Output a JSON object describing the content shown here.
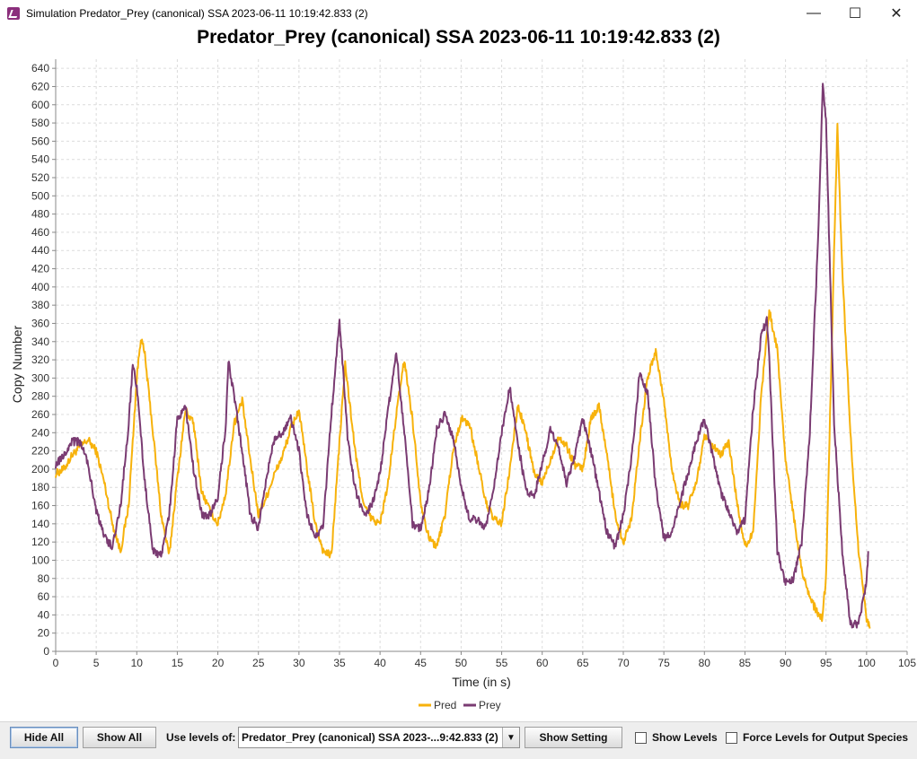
{
  "window": {
    "title": "Simulation Predator_Prey (canonical) SSA 2023-06-11 10:19:42.833 (2)",
    "controls": {
      "minimize": "—",
      "maximize": "☐",
      "close": "✕"
    }
  },
  "chart_data": {
    "type": "line",
    "title": "Predator_Prey (canonical) SSA 2023-06-11 10:19:42.833 (2)",
    "xlabel": "Time (in s)",
    "ylabel": "Copy Number",
    "xlim": [
      0,
      105
    ],
    "ylim": [
      0,
      650
    ],
    "xticks": [
      0,
      5,
      10,
      15,
      20,
      25,
      30,
      35,
      40,
      45,
      50,
      55,
      60,
      65,
      70,
      75,
      80,
      85,
      90,
      95,
      100,
      105
    ],
    "yticks": [
      0,
      20,
      40,
      60,
      80,
      100,
      120,
      140,
      160,
      180,
      200,
      220,
      240,
      260,
      280,
      300,
      320,
      340,
      360,
      380,
      400,
      420,
      440,
      460,
      480,
      500,
      520,
      540,
      560,
      580,
      600,
      620,
      640
    ],
    "grid": true,
    "legend": "bottom-center",
    "series": [
      {
        "name": "Pred",
        "color": "#f7b20b",
        "points": [
          [
            0,
            195
          ],
          [
            1,
            200
          ],
          [
            2,
            215
          ],
          [
            3,
            225
          ],
          [
            4,
            232
          ],
          [
            5,
            220
          ],
          [
            6,
            185
          ],
          [
            7,
            140
          ],
          [
            8,
            110
          ],
          [
            9,
            160
          ],
          [
            10,
            300
          ],
          [
            10.5,
            345
          ],
          [
            11,
            325
          ],
          [
            12,
            240
          ],
          [
            13,
            150
          ],
          [
            14,
            105
          ],
          [
            15,
            190
          ],
          [
            16,
            265
          ],
          [
            17,
            250
          ],
          [
            18,
            175
          ],
          [
            19,
            155
          ],
          [
            20,
            140
          ],
          [
            21,
            175
          ],
          [
            22,
            250
          ],
          [
            23,
            275
          ],
          [
            24,
            210
          ],
          [
            25,
            150
          ],
          [
            26,
            170
          ],
          [
            27,
            195
          ],
          [
            28,
            215
          ],
          [
            29,
            245
          ],
          [
            30,
            265
          ],
          [
            31,
            200
          ],
          [
            32,
            140
          ],
          [
            33,
            110
          ],
          [
            34,
            105
          ],
          [
            35,
            230
          ],
          [
            35.7,
            315
          ],
          [
            37,
            215
          ],
          [
            38,
            160
          ],
          [
            39,
            145
          ],
          [
            40,
            140
          ],
          [
            41,
            185
          ],
          [
            42,
            260
          ],
          [
            43,
            320
          ],
          [
            44,
            255
          ],
          [
            45,
            165
          ],
          [
            46,
            125
          ],
          [
            47,
            115
          ],
          [
            48,
            150
          ],
          [
            49,
            220
          ],
          [
            50,
            255
          ],
          [
            51,
            250
          ],
          [
            52,
            210
          ],
          [
            53,
            165
          ],
          [
            54,
            145
          ],
          [
            55,
            140
          ],
          [
            56,
            200
          ],
          [
            57,
            270
          ],
          [
            58,
            240
          ],
          [
            59,
            195
          ],
          [
            60,
            185
          ],
          [
            61,
            210
          ],
          [
            62,
            235
          ],
          [
            63,
            225
          ],
          [
            64,
            205
          ],
          [
            65,
            200
          ],
          [
            66,
            255
          ],
          [
            67,
            270
          ],
          [
            68,
            215
          ],
          [
            69,
            150
          ],
          [
            70,
            120
          ],
          [
            71,
            145
          ],
          [
            72,
            230
          ],
          [
            73,
            300
          ],
          [
            74,
            330
          ],
          [
            75,
            275
          ],
          [
            76,
            200
          ],
          [
            77,
            160
          ],
          [
            78,
            160
          ],
          [
            79,
            185
          ],
          [
            80,
            235
          ],
          [
            81,
            225
          ],
          [
            82,
            215
          ],
          [
            83,
            230
          ],
          [
            84,
            165
          ],
          [
            85,
            115
          ],
          [
            86,
            130
          ],
          [
            87,
            280
          ],
          [
            88,
            375
          ],
          [
            89,
            330
          ],
          [
            90,
            210
          ],
          [
            91,
            150
          ],
          [
            92,
            90
          ],
          [
            93,
            60
          ],
          [
            94,
            40
          ],
          [
            94.5,
            35
          ],
          [
            95,
            80
          ],
          [
            96,
            440
          ],
          [
            96.4,
            575
          ],
          [
            97,
            420
          ],
          [
            98,
            240
          ],
          [
            99,
            110
          ],
          [
            100,
            35
          ],
          [
            100.4,
            25
          ]
        ]
      },
      {
        "name": "Prey",
        "color": "#7a3b72",
        "points": [
          [
            0,
            205
          ],
          [
            1,
            215
          ],
          [
            2,
            230
          ],
          [
            3,
            230
          ],
          [
            4,
            205
          ],
          [
            5,
            155
          ],
          [
            6,
            125
          ],
          [
            7,
            115
          ],
          [
            8,
            160
          ],
          [
            9,
            250
          ],
          [
            9.5,
            315
          ],
          [
            10,
            290
          ],
          [
            11,
            185
          ],
          [
            12,
            110
          ],
          [
            13,
            105
          ],
          [
            14,
            150
          ],
          [
            15,
            255
          ],
          [
            16,
            270
          ],
          [
            17,
            200
          ],
          [
            18,
            150
          ],
          [
            19,
            150
          ],
          [
            20,
            170
          ],
          [
            21,
            250
          ],
          [
            21.3,
            320
          ],
          [
            22,
            280
          ],
          [
            23,
            220
          ],
          [
            24,
            150
          ],
          [
            25,
            135
          ],
          [
            26,
            190
          ],
          [
            27,
            235
          ],
          [
            28,
            240
          ],
          [
            29,
            255
          ],
          [
            30,
            220
          ],
          [
            31,
            150
          ],
          [
            32,
            125
          ],
          [
            33,
            140
          ],
          [
            34,
            260
          ],
          [
            35,
            365
          ],
          [
            36,
            235
          ],
          [
            37,
            175
          ],
          [
            38,
            150
          ],
          [
            39,
            160
          ],
          [
            40,
            195
          ],
          [
            41,
            265
          ],
          [
            42,
            330
          ],
          [
            43,
            240
          ],
          [
            44,
            140
          ],
          [
            45,
            135
          ],
          [
            46,
            175
          ],
          [
            47,
            245
          ],
          [
            48,
            260
          ],
          [
            49,
            235
          ],
          [
            50,
            180
          ],
          [
            51,
            145
          ],
          [
            52,
            145
          ],
          [
            53,
            135
          ],
          [
            54,
            175
          ],
          [
            55,
            240
          ],
          [
            56,
            290
          ],
          [
            57,
            230
          ],
          [
            58,
            175
          ],
          [
            59,
            170
          ],
          [
            60,
            205
          ],
          [
            61,
            245
          ],
          [
            62,
            225
          ],
          [
            63,
            185
          ],
          [
            64,
            215
          ],
          [
            65,
            255
          ],
          [
            66,
            220
          ],
          [
            67,
            175
          ],
          [
            68,
            130
          ],
          [
            69,
            115
          ],
          [
            70,
            150
          ],
          [
            71,
            210
          ],
          [
            72,
            305
          ],
          [
            73,
            285
          ],
          [
            74,
            180
          ],
          [
            75,
            125
          ],
          [
            76,
            130
          ],
          [
            77,
            165
          ],
          [
            78,
            195
          ],
          [
            79,
            230
          ],
          [
            80,
            255
          ],
          [
            81,
            215
          ],
          [
            82,
            175
          ],
          [
            83,
            155
          ],
          [
            84,
            130
          ],
          [
            85,
            145
          ],
          [
            86,
            265
          ],
          [
            87,
            345
          ],
          [
            87.7,
            365
          ],
          [
            88,
            320
          ],
          [
            89,
            110
          ],
          [
            90,
            75
          ],
          [
            91,
            80
          ],
          [
            92,
            120
          ],
          [
            93,
            240
          ],
          [
            94,
            450
          ],
          [
            94.6,
            620
          ],
          [
            95,
            580
          ],
          [
            96,
            250
          ],
          [
            97,
            110
          ],
          [
            98,
            30
          ],
          [
            99,
            30
          ],
          [
            100,
            75
          ],
          [
            100.2,
            110
          ]
        ]
      }
    ]
  },
  "controls": {
    "hide_all": "Hide All",
    "show_all": "Show All",
    "use_levels_label": "Use levels of:",
    "levels_value": "Predator_Prey (canonical) SSA 2023-...9:42.833 (2)",
    "show_setting": "Show Setting",
    "show_levels": "Show Levels",
    "force_levels": "Force Levels for Output Species"
  }
}
